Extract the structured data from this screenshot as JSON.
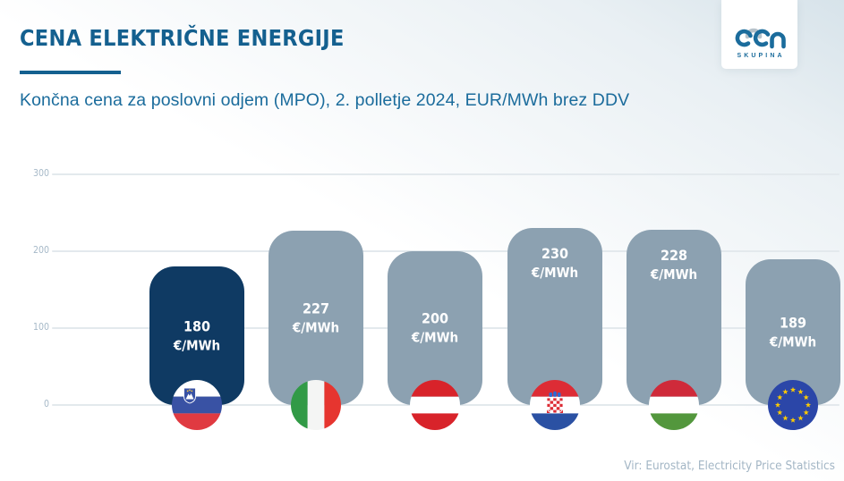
{
  "header": {
    "title": "CENA ELEKTRIČNE ENERGIJE",
    "subtitle": "Končna cena za poslovni odjem (MPO), 2. polletje 2024, EUR/MWh brez DDV"
  },
  "logo": {
    "brand": "Gen",
    "sub": "SKUPINA"
  },
  "source": "Vir: Eurostat, Electricity Price Statistics",
  "colors": {
    "accent": "#14608F",
    "subtitle_text": "#1B6C9C",
    "bar_highlight": "#0F3A63",
    "bar_default": "#8CA1B1",
    "axis_label": "#A6B9C8",
    "gridline": "#E3E9ED",
    "bar_label_text": "#FFFFFF"
  },
  "chart_data": {
    "type": "bar",
    "title": "Končna cena za poslovni odjem (MPO), 2. polletje 2024, EUR/MWh brez DDV",
    "xlabel": "",
    "ylabel": "EUR/MWh",
    "ylim": [
      0,
      300
    ],
    "yticks": [
      0,
      100,
      200,
      300
    ],
    "grid": true,
    "legend": "none",
    "unit": "€/MWh",
    "categories": [
      "Slovenija",
      "Italija",
      "Avstrija",
      "Hrvaška",
      "Madžarska",
      "EU"
    ],
    "values": [
      180,
      227,
      200,
      230,
      228,
      189
    ],
    "bars": [
      {
        "country": "Slovenija",
        "flag": "si",
        "flag_icon": "slovenia-flag-icon",
        "value": "180",
        "unit": "€/MWh",
        "highlight": true,
        "label_pos": "middle"
      },
      {
        "country": "Italija",
        "flag": "it",
        "flag_icon": "italy-flag-icon",
        "value": "227",
        "unit": "€/MWh",
        "highlight": false,
        "label_pos": "middle"
      },
      {
        "country": "Avstrija",
        "flag": "at",
        "flag_icon": "austria-flag-icon",
        "value": "200",
        "unit": "€/MWh",
        "highlight": false,
        "label_pos": "middle"
      },
      {
        "country": "Hrvaška",
        "flag": "hr",
        "flag_icon": "croatia-flag-icon",
        "value": "230",
        "unit": "€/MWh",
        "highlight": false,
        "label_pos": "top"
      },
      {
        "country": "Madžarska",
        "flag": "hu",
        "flag_icon": "hungary-flag-icon",
        "value": "228",
        "unit": "€/MWh",
        "highlight": false,
        "label_pos": "top"
      },
      {
        "country": "EU",
        "flag": "eu",
        "flag_icon": "eu-flag-icon",
        "value": "189",
        "unit": "€/MWh",
        "highlight": false,
        "label_pos": "middle"
      }
    ]
  }
}
